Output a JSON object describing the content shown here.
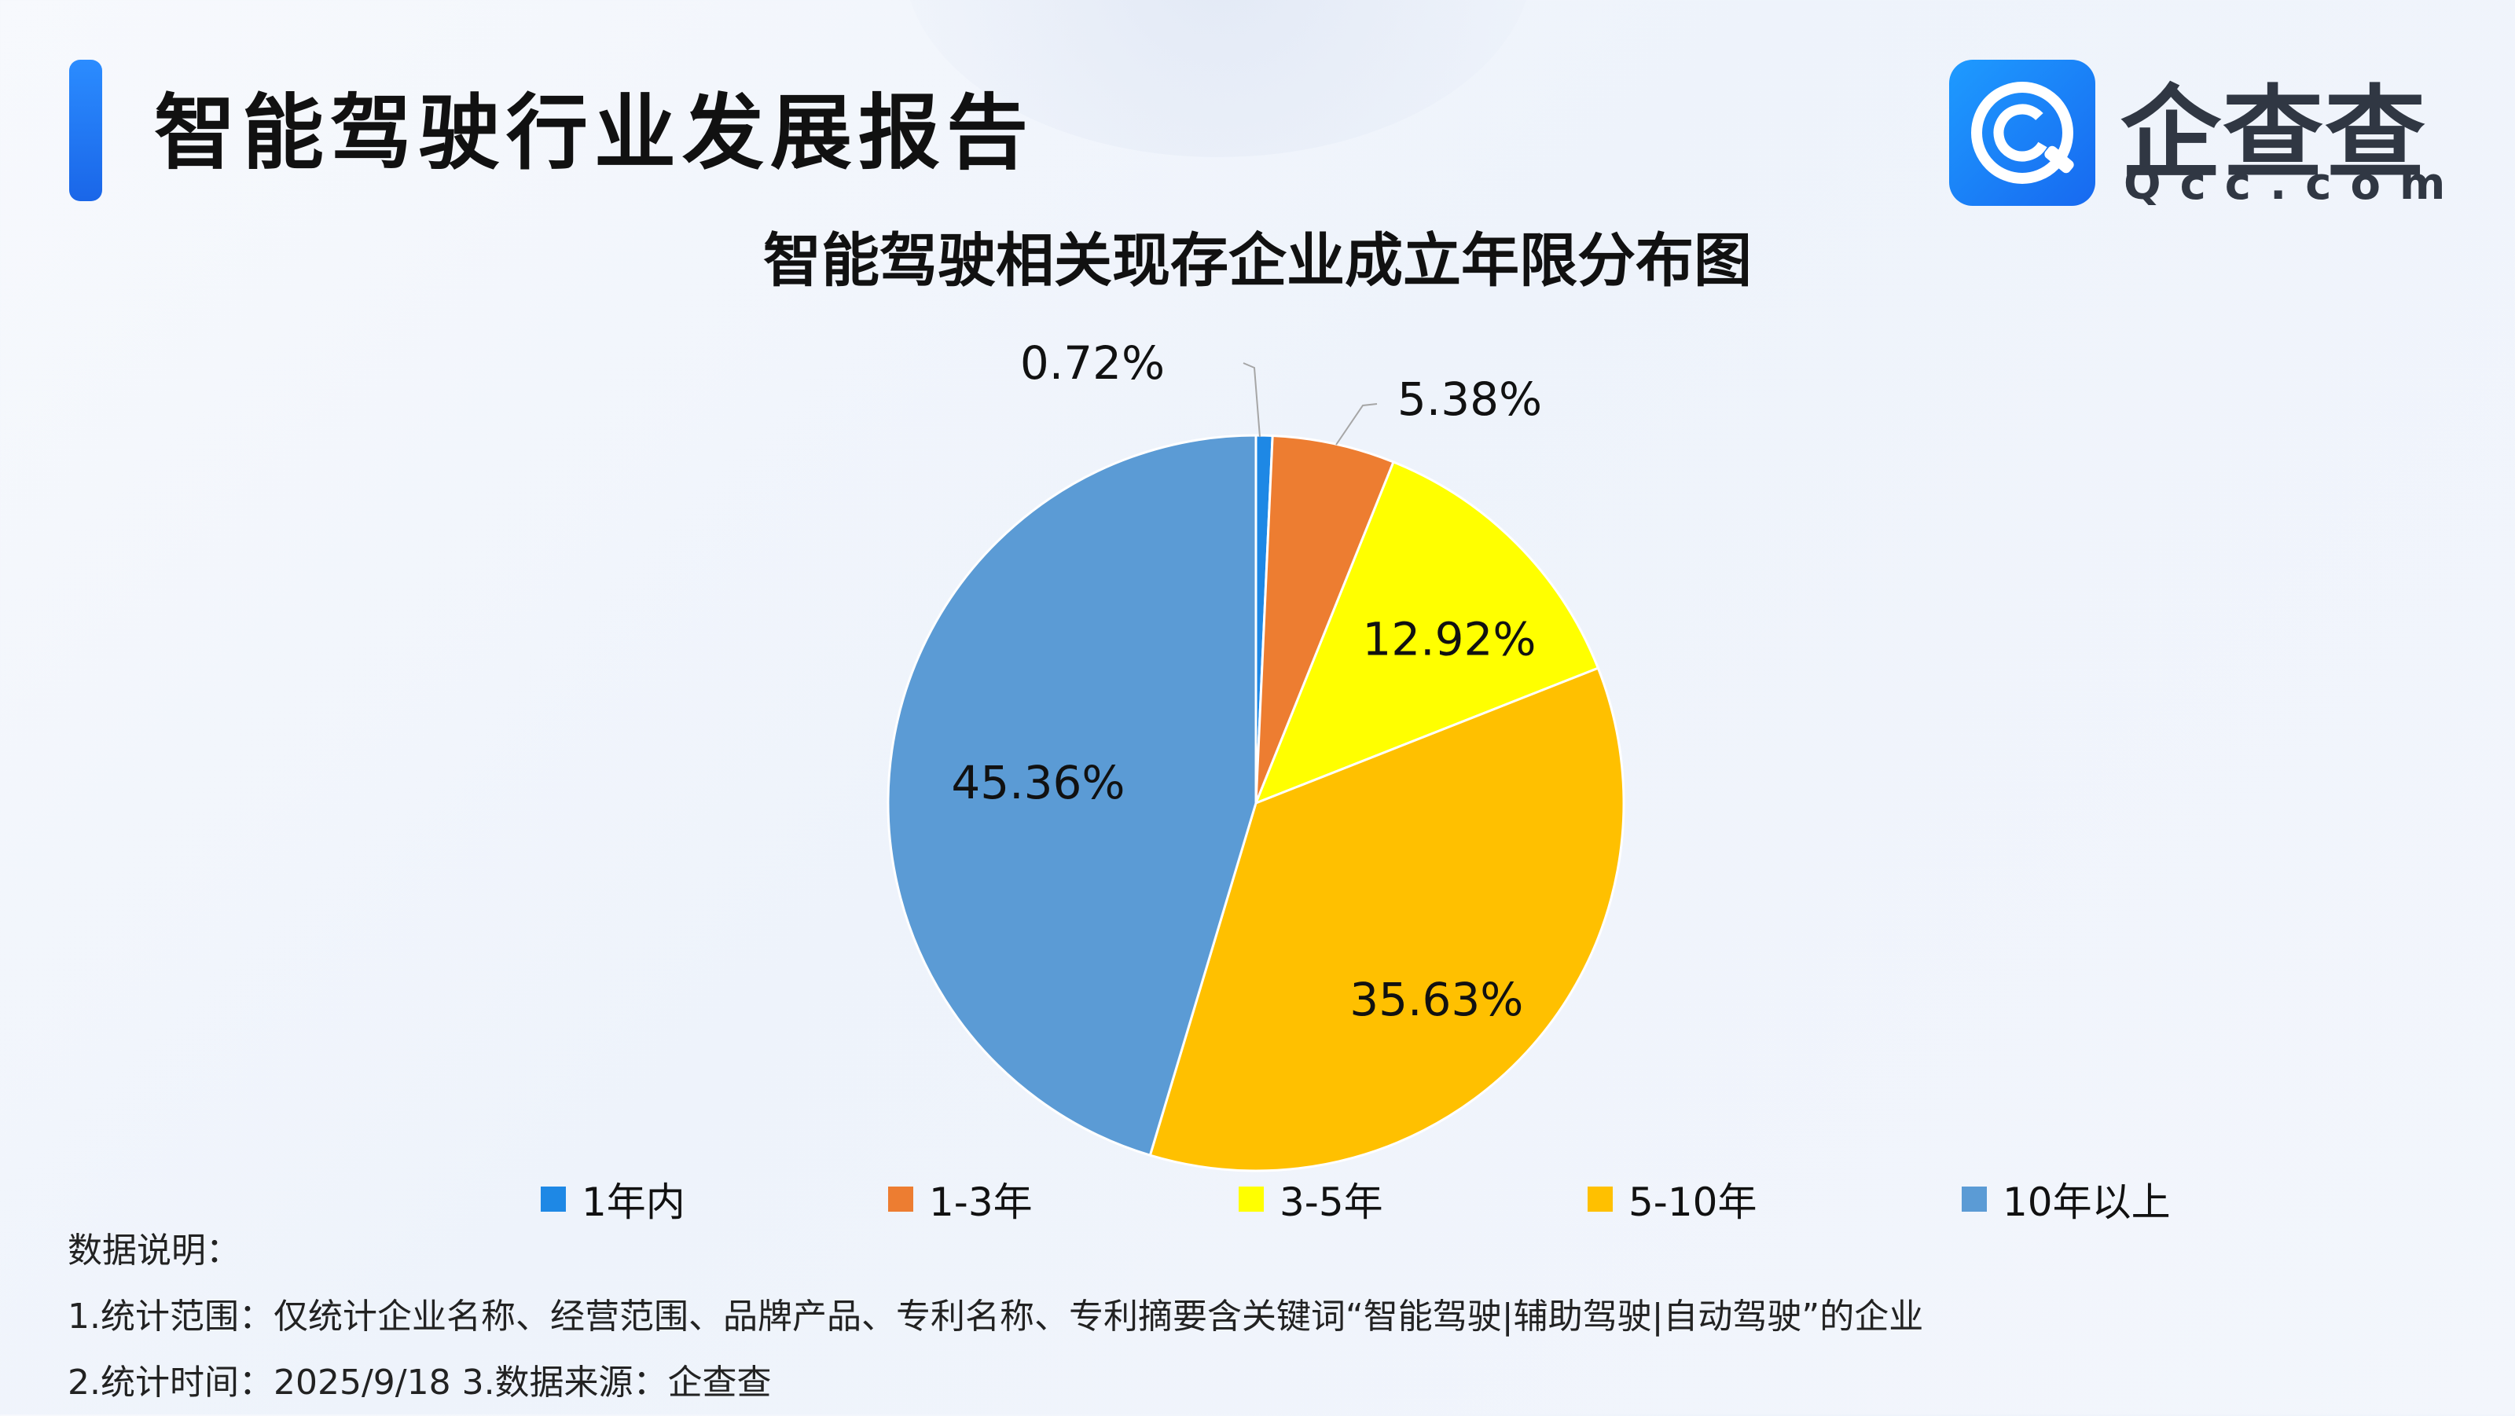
{
  "header": {
    "title": "智能驾驶行业发展报告"
  },
  "logo": {
    "name": "企查查",
    "domain": "Qcc.com"
  },
  "colors": {
    "accent": "#1a73f0",
    "slice_1": "#1e88e5",
    "slice_2": "#ed7d31",
    "slice_3": "#ffff00",
    "slice_4": "#ffc000",
    "slice_5": "#5b9bd5"
  },
  "chart_data": {
    "type": "pie",
    "title": "智能驾驶相关现存企业成立年限分布图",
    "categories": [
      "1年内",
      "1-3年",
      "3-5年",
      "5-10年",
      "10年以上"
    ],
    "values": [
      0.72,
      5.38,
      12.92,
      35.63,
      45.36
    ],
    "labels": [
      "0.72%",
      "5.38%",
      "12.92%",
      "35.63%",
      "45.36%"
    ],
    "colors": [
      "#1e88e5",
      "#ed7d31",
      "#ffff00",
      "#ffc000",
      "#5b9bd5"
    ],
    "legend_position": "bottom"
  },
  "notes": {
    "heading": "数据说明：",
    "line1": "1.统计范围：仅统计企业名称、经营范围、品牌产品、专利名称、专利摘要含关键词“智能驾驶|辅助驾驶|自动驾驶”的企业",
    "line2": " 2.统计时间：2025/9/18  3.数据来源：企查查"
  }
}
